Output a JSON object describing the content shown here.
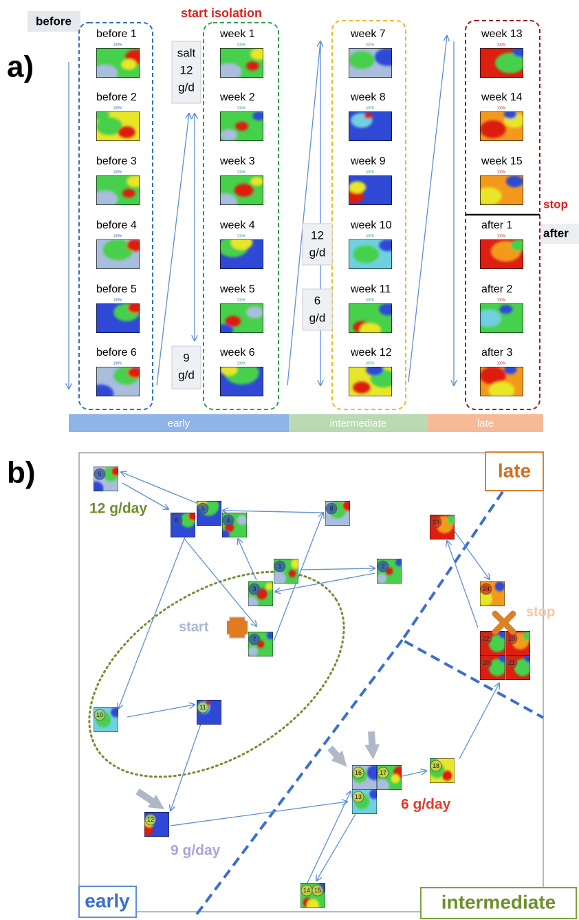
{
  "panel_a": {
    "label": "a)",
    "before_label": "before",
    "start_label": "start isolation",
    "stop_label": "stop",
    "after_label": "after",
    "scale_label": "100%",
    "columns": [
      {
        "items": [
          "before 1",
          "before 2",
          "before 3",
          "before 4",
          "before 5",
          "before 6"
        ]
      },
      {
        "items": [
          "week 1",
          "week 2",
          "week 3",
          "week 4",
          "week 5",
          "week 6"
        ]
      },
      {
        "items": [
          "week 7",
          "week 8",
          "week 9",
          "week 10",
          "week 11",
          "week 12"
        ]
      },
      {
        "items": [
          "week 13",
          "week 14",
          "week 15",
          "after 1",
          "after 2",
          "after 3"
        ]
      }
    ],
    "salt_notes": [
      {
        "lines": [
          "salt",
          "12",
          "g/d"
        ]
      },
      {
        "lines": [
          "9",
          "g/d"
        ]
      },
      {
        "lines": [
          "12",
          "g/d"
        ]
      },
      {
        "lines": [
          "6",
          "g/d"
        ]
      }
    ],
    "phases": [
      "early",
      "intermediate",
      "late"
    ]
  },
  "panel_b": {
    "label": "b)",
    "regions": [
      "late",
      "early",
      "intermediate"
    ],
    "start": "start",
    "stop": "stop",
    "doses": [
      "12 g/day",
      "9 g/day",
      "6 g/day"
    ],
    "nodes": [
      {
        "labels": [
          "5"
        ]
      },
      {
        "labels": [
          "6"
        ]
      },
      {
        "labels": [
          "4"
        ]
      },
      {
        "labels": [
          "1"
        ]
      },
      {
        "labels": [
          "2"
        ]
      },
      {
        "labels": [
          "3"
        ]
      },
      {
        "labels": [
          "7"
        ]
      },
      {
        "labels": [
          "8"
        ]
      },
      {
        "labels": [
          "9"
        ]
      },
      {
        "labels": [
          "10"
        ]
      },
      {
        "labels": [
          "11"
        ]
      },
      {
        "labels": [
          "12"
        ]
      },
      {
        "labels": [
          "16"
        ]
      },
      {
        "labels": [
          "17"
        ]
      },
      {
        "labels": [
          "13"
        ]
      },
      {
        "labels": [
          "14",
          "15"
        ]
      },
      {
        "labels": [
          "18"
        ]
      },
      {
        "labels": [
          "23"
        ]
      },
      {
        "labels": [
          "24"
        ]
      },
      {
        "labels": [
          "22"
        ]
      },
      {
        "labels": [
          "19"
        ]
      },
      {
        "labels": [
          "20"
        ]
      },
      {
        "labels": [
          "21"
        ]
      }
    ]
  }
}
